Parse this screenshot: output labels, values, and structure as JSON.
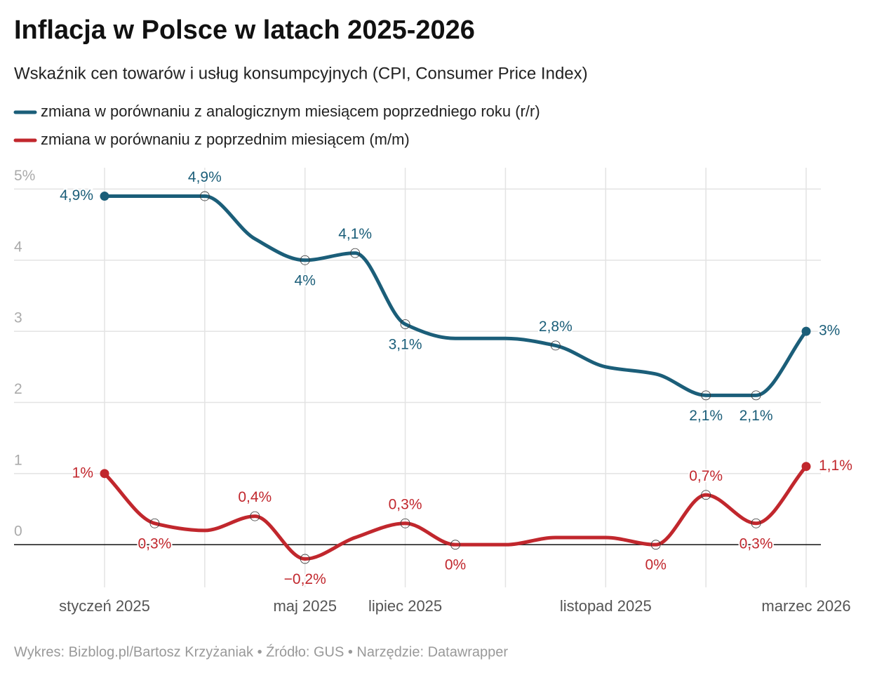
{
  "chart_data": {
    "type": "line",
    "title": "Inflacja w Polsce w latach 2025-2026",
    "subtitle": "Wskaźnik cen towarów i usług konsumpcyjnych (CPI, Consumer Price Index)",
    "footer": "Wykres: Bizblog.pl/Bartosz Krzyżaniak • Źródło: GUS • Narzędzie: Datawrapper",
    "categories": [
      "styczeń 2025",
      null,
      null,
      null,
      "maj 2025",
      null,
      "lipiec 2025",
      null,
      null,
      null,
      "listopad 2025",
      null,
      null,
      null,
      "marzec 2026"
    ],
    "series": [
      {
        "name": "zmiana w porównaniu z analogicznym miesiącem poprzedniego roku (r/r)",
        "color": "#1b5e79",
        "values": [
          4.9,
          4.9,
          4.9,
          4.3,
          4.0,
          4.1,
          3.1,
          2.9,
          2.9,
          2.8,
          2.5,
          2.4,
          2.1,
          2.1,
          3.0
        ],
        "value_labels": [
          "4,9%",
          null,
          "4,9%",
          null,
          "4%",
          "4,1%",
          "3,1%",
          null,
          null,
          "2,8%",
          null,
          null,
          "2,1%",
          "2,1%",
          "3%"
        ]
      },
      {
        "name": "zmiana w porównaniu z poprzednim miesiącem (m/m)",
        "color": "#c1272d",
        "values": [
          1.0,
          0.3,
          0.2,
          0.4,
          -0.2,
          0.1,
          0.3,
          0,
          0,
          0.1,
          0.1,
          0,
          0.7,
          0.3,
          1.1
        ],
        "value_labels": [
          "1%",
          "0,3%",
          null,
          "0,4%",
          "−0,2%",
          null,
          "0,3%",
          "0%",
          null,
          null,
          null,
          "0%",
          "0,7%",
          "0,3%",
          "1,1%"
        ]
      }
    ],
    "ylim": [
      -0.6,
      5.3
    ],
    "yticks": [
      0,
      1,
      2,
      3,
      4,
      {
        "value": 5,
        "label": "5%"
      }
    ],
    "grid": true
  }
}
